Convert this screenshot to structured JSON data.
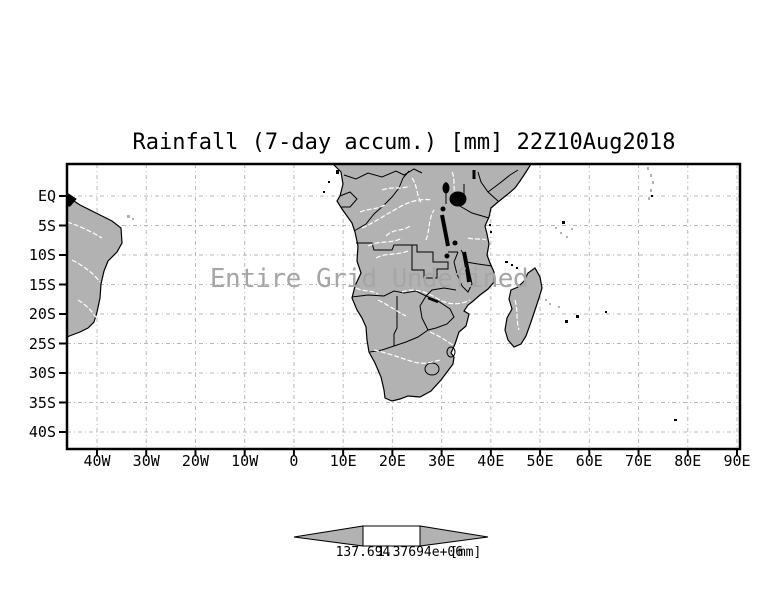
{
  "title": "Rainfall (7-day accum.) [mm] 22Z10Aug2018",
  "map": {
    "overlay_text": "Entire Grid Undefined",
    "y_axis": {
      "tick_labels": [
        "EQ",
        "5S",
        "10S",
        "15S",
        "20S",
        "25S",
        "30S",
        "35S",
        "40S"
      ]
    },
    "x_axis": {
      "tick_labels": [
        "40W",
        "30W",
        "20W",
        "10W",
        "0",
        "10E",
        "20E",
        "30E",
        "40E",
        "50E",
        "60E",
        "70E",
        "80E",
        "90E"
      ]
    }
  },
  "colorbar": {
    "labels": [
      "137.694",
      "1.37694e+06"
    ],
    "units": "[mm]"
  },
  "colors": {
    "land": "#b2b2b2",
    "ocean": "#ffffff",
    "coastline": "#000000",
    "gridline": "#b8b8b8",
    "overlay_text": "#a6a6a6",
    "rivers": "#ffffff"
  }
}
